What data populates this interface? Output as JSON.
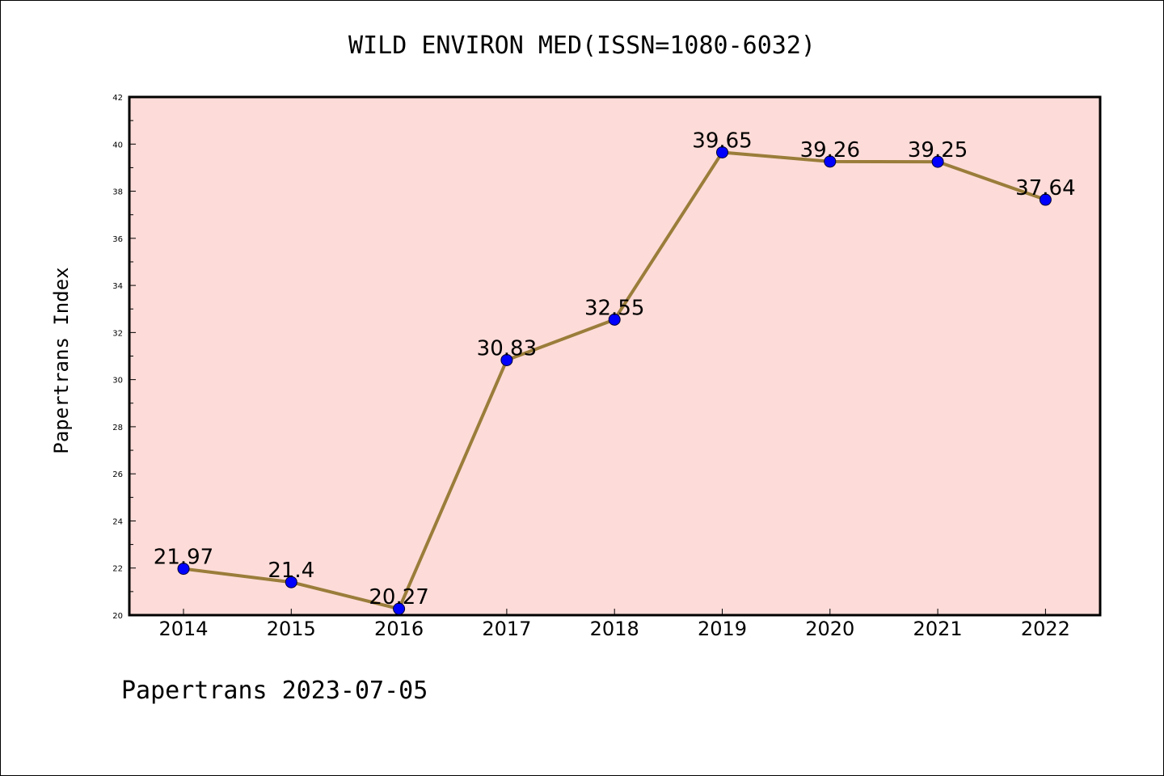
{
  "chart_data": {
    "type": "line",
    "title": "WILD ENVIRON MED(ISSN=1080-6032)",
    "xlabel": "",
    "ylabel": "Papertrans Index",
    "footer": "Papertrans 2023-07-05",
    "categories": [
      "2014",
      "2015",
      "2016",
      "2017",
      "2018",
      "2019",
      "2020",
      "2021",
      "2022"
    ],
    "series": [
      {
        "values": [
          21.97,
          21.4,
          20.27,
          30.83,
          32.55,
          39.65,
          39.26,
          39.25,
          37.64
        ],
        "labels": [
          "21.97",
          "21.4",
          "20.27",
          "30.83",
          "32.55",
          "39.65",
          "39.26",
          "39.25",
          "37.64"
        ]
      }
    ],
    "ylim": [
      20,
      42
    ],
    "yticks": [
      "20",
      "22",
      "24",
      "26",
      "28",
      "30",
      "32",
      "34",
      "36",
      "38",
      "40",
      "42"
    ],
    "grid": false,
    "legend": "none",
    "colors": {
      "plot_background": "#fddbd8",
      "line": "#9a7d3a",
      "marker": "#0000ff",
      "axis": "#000000"
    }
  }
}
